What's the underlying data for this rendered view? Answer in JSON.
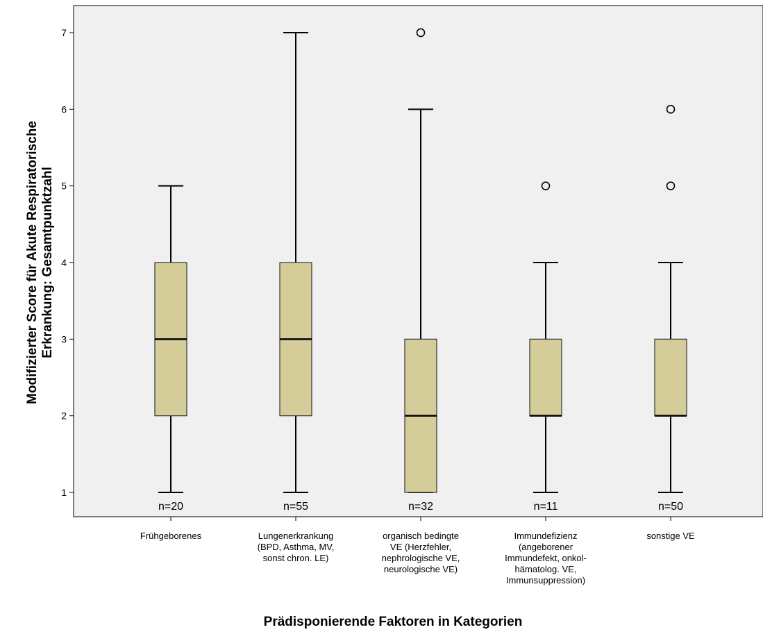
{
  "chart_data": {
    "type": "boxplot",
    "title": "",
    "xlabel": "Prädisponierende Faktoren in Kategorien",
    "ylabel_lines": [
      "Modifizierter Score für Akute Respiratorische",
      "Erkrankung: Gesamtpunktzahl"
    ],
    "ylim": [
      0.65,
      7.3
    ],
    "yticks": [
      "1",
      "2",
      "3",
      "4",
      "5",
      "6",
      "7"
    ],
    "grid": false,
    "box_color": "#d4cd9a",
    "background_color": "#f0f0f0",
    "categories": [
      {
        "label_lines": [
          "Frühgeborenes"
        ],
        "n_label": "n=20",
        "min": 1,
        "q1": 2,
        "median": 3,
        "q3": 4,
        "max": 5,
        "outliers": []
      },
      {
        "label_lines": [
          "Lungenerkrankung",
          "(BPD, Asthma, MV,",
          "sonst chron. LE)"
        ],
        "n_label": "n=55",
        "min": 1,
        "q1": 2,
        "median": 3,
        "q3": 4,
        "max": 7,
        "outliers": []
      },
      {
        "label_lines": [
          "organisch bedingte",
          "VE (Herzfehler,",
          "nephrologische VE,",
          "neurologische VE)"
        ],
        "n_label": "n=32",
        "min": 1,
        "q1": 1,
        "median": 2,
        "q3": 3,
        "max": 6,
        "outliers": [
          7
        ]
      },
      {
        "label_lines": [
          "Immundefizienz",
          "(angeborener",
          "Immundefekt, onkol-",
          "hämatolog. VE,",
          "Immunsuppression)"
        ],
        "n_label": "n=11",
        "min": 1,
        "q1": 2,
        "median": 2,
        "q3": 3,
        "max": 4,
        "outliers": [
          5
        ]
      },
      {
        "label_lines": [
          "sonstige VE"
        ],
        "n_label": "n=50",
        "min": 1,
        "q1": 2,
        "median": 2,
        "q3": 3,
        "max": 4,
        "outliers": [
          5,
          6
        ]
      }
    ]
  }
}
